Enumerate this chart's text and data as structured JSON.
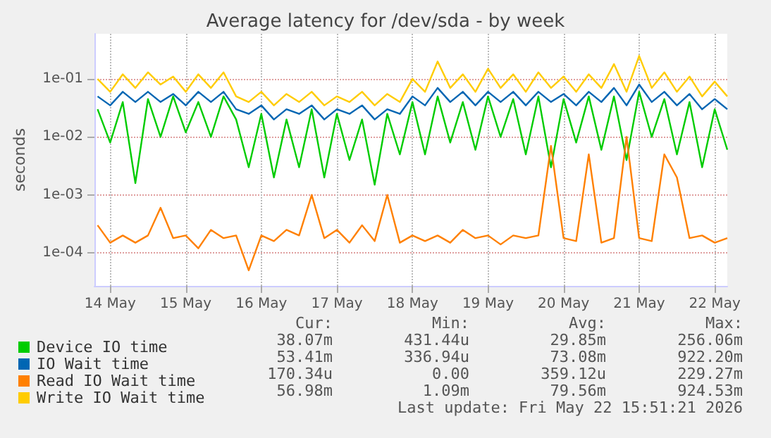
{
  "chart_data": {
    "type": "line",
    "title": "Average latency for /dev/sda - by week",
    "ylabel": "seconds",
    "x": [
      "2026-05-13T20:00",
      "2026-05-14T00:00",
      "2026-05-14T04:00",
      "2026-05-14T08:00",
      "2026-05-14T12:00",
      "2026-05-14T16:00",
      "2026-05-14T20:00",
      "2026-05-15T00:00",
      "2026-05-15T04:00",
      "2026-05-15T08:00",
      "2026-05-15T12:00",
      "2026-05-15T16:00",
      "2026-05-15T20:00",
      "2026-05-16T00:00",
      "2026-05-16T04:00",
      "2026-05-16T08:00",
      "2026-05-16T12:00",
      "2026-05-16T16:00",
      "2026-05-16T20:00",
      "2026-05-17T00:00",
      "2026-05-17T04:00",
      "2026-05-17T08:00",
      "2026-05-17T12:00",
      "2026-05-17T16:00",
      "2026-05-17T20:00",
      "2026-05-18T00:00",
      "2026-05-18T04:00",
      "2026-05-18T08:00",
      "2026-05-18T12:00",
      "2026-05-18T16:00",
      "2026-05-18T20:00",
      "2026-05-19T00:00",
      "2026-05-19T04:00",
      "2026-05-19T08:00",
      "2026-05-19T12:00",
      "2026-05-19T16:00",
      "2026-05-19T20:00",
      "2026-05-20T00:00",
      "2026-05-20T04:00",
      "2026-05-20T08:00",
      "2026-05-20T12:00",
      "2026-05-20T16:00",
      "2026-05-20T20:00",
      "2026-05-21T00:00",
      "2026-05-21T04:00",
      "2026-05-21T08:00",
      "2026-05-21T12:00",
      "2026-05-21T16:00",
      "2026-05-21T20:00",
      "2026-05-22T00:00",
      "2026-05-22T04:00"
    ],
    "series": [
      {
        "name": "Device IO time",
        "color": "#00cc00",
        "values": [
          0.03,
          0.008,
          0.04,
          0.0016,
          0.045,
          0.01,
          0.05,
          0.012,
          0.04,
          0.01,
          0.05,
          0.02,
          0.003,
          0.025,
          0.002,
          0.02,
          0.003,
          0.03,
          0.002,
          0.025,
          0.004,
          0.02,
          0.0015,
          0.025,
          0.005,
          0.04,
          0.005,
          0.05,
          0.008,
          0.04,
          0.006,
          0.05,
          0.01,
          0.045,
          0.005,
          0.05,
          0.003,
          0.045,
          0.008,
          0.05,
          0.006,
          0.05,
          0.004,
          0.06,
          0.01,
          0.045,
          0.005,
          0.04,
          0.003,
          0.03,
          0.006
        ]
      },
      {
        "name": "IO Wait time",
        "color": "#0066b3",
        "values": [
          0.05,
          0.035,
          0.06,
          0.04,
          0.06,
          0.04,
          0.055,
          0.035,
          0.06,
          0.04,
          0.06,
          0.03,
          0.025,
          0.035,
          0.02,
          0.03,
          0.025,
          0.035,
          0.02,
          0.03,
          0.025,
          0.035,
          0.02,
          0.03,
          0.025,
          0.05,
          0.035,
          0.07,
          0.04,
          0.06,
          0.035,
          0.06,
          0.04,
          0.06,
          0.035,
          0.06,
          0.04,
          0.055,
          0.035,
          0.06,
          0.04,
          0.07,
          0.035,
          0.08,
          0.04,
          0.06,
          0.035,
          0.055,
          0.03,
          0.045,
          0.03
        ]
      },
      {
        "name": "Read IO Wait time",
        "color": "#ff8000",
        "values": [
          0.0003,
          0.00015,
          0.0002,
          0.00015,
          0.0002,
          0.0006,
          0.00018,
          0.0002,
          0.00012,
          0.00025,
          0.00018,
          0.0002,
          5e-05,
          0.0002,
          0.00016,
          0.00025,
          0.0002,
          0.001,
          0.00018,
          0.00025,
          0.00015,
          0.0003,
          0.00016,
          0.001,
          0.00015,
          0.0002,
          0.00016,
          0.0002,
          0.00015,
          0.00025,
          0.00018,
          0.0002,
          0.00014,
          0.0002,
          0.00018,
          0.0002,
          0.007,
          0.00018,
          0.00016,
          0.005,
          0.00015,
          0.00018,
          0.01,
          0.00018,
          0.00016,
          0.005,
          0.002,
          0.00018,
          0.0002,
          0.00015,
          0.00018
        ]
      },
      {
        "name": "Write IO Wait time",
        "color": "#ffcc00",
        "values": [
          0.1,
          0.06,
          0.12,
          0.07,
          0.13,
          0.08,
          0.11,
          0.06,
          0.12,
          0.07,
          0.13,
          0.05,
          0.04,
          0.06,
          0.035,
          0.055,
          0.04,
          0.06,
          0.035,
          0.05,
          0.04,
          0.06,
          0.035,
          0.055,
          0.04,
          0.1,
          0.06,
          0.2,
          0.07,
          0.12,
          0.06,
          0.15,
          0.07,
          0.12,
          0.06,
          0.13,
          0.07,
          0.11,
          0.06,
          0.12,
          0.07,
          0.18,
          0.06,
          0.25,
          0.07,
          0.13,
          0.06,
          0.11,
          0.05,
          0.09,
          0.05
        ]
      }
    ],
    "xlim": [
      "2026-05-13T19:00",
      "2026-05-22T04:00"
    ],
    "xticks": [
      {
        "value": "2026-05-14T00:00",
        "label": "14 May"
      },
      {
        "value": "2026-05-15T00:00",
        "label": "15 May"
      },
      {
        "value": "2026-05-16T00:00",
        "label": "16 May"
      },
      {
        "value": "2026-05-17T00:00",
        "label": "17 May"
      },
      {
        "value": "2026-05-18T00:00",
        "label": "18 May"
      },
      {
        "value": "2026-05-19T00:00",
        "label": "19 May"
      },
      {
        "value": "2026-05-20T00:00",
        "label": "20 May"
      },
      {
        "value": "2026-05-21T00:00",
        "label": "21 May"
      },
      {
        "value": "2026-05-22T00:00",
        "label": "22 May"
      }
    ],
    "ylim": [
      2.7e-05,
      0.6
    ],
    "yticks": [
      {
        "value": 0.0001,
        "label": "1e-04"
      },
      {
        "value": 0.001,
        "label": "1e-03"
      },
      {
        "value": 0.01,
        "label": "1e-02"
      },
      {
        "value": 0.1,
        "label": "1e-01"
      }
    ],
    "log": "y",
    "grid": true,
    "legend": "bottom",
    "marker": "none",
    "line_style": "solid",
    "annotations": [
      "Cur:",
      "Min:",
      "Avg:",
      "Max:",
      "38.07m",
      "431.44u",
      "29.85m",
      "256.06m",
      "53.41m",
      "336.94u",
      "73.08m",
      "922.20m",
      "170.34u",
      "0.00",
      "359.12u",
      "229.27m",
      "56.98m",
      "1.09m",
      "79.56m",
      "924.53m",
      "Last update: Fri May 22 15:51:21 2026"
    ]
  }
}
